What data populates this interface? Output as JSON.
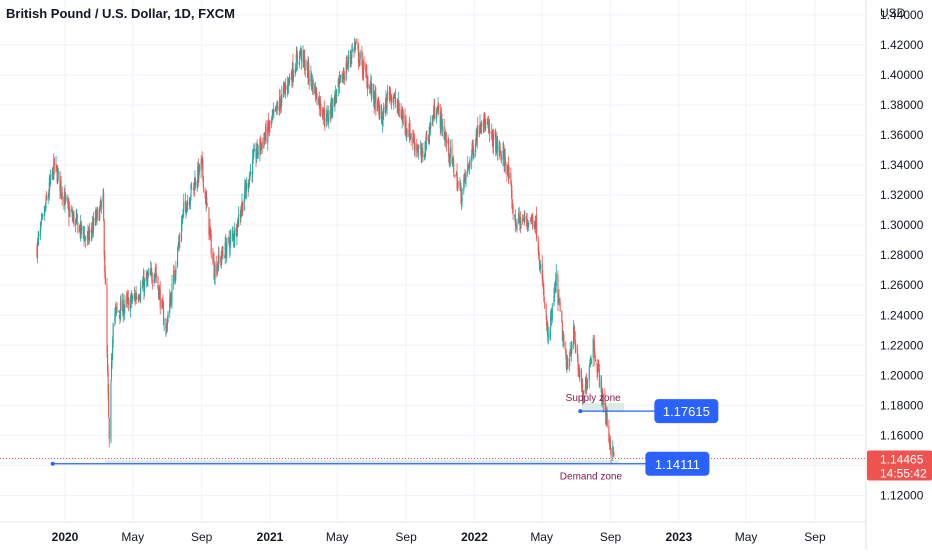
{
  "chart_data": {
    "type": "candlestick",
    "title": "British Pound / U.S. Dollar, 1D, FXCM",
    "currency_label": "USD",
    "ylim": [
      1.11,
      1.45
    ],
    "yticks": [
      "1.44000",
      "1.42000",
      "1.40000",
      "1.38000",
      "1.36000",
      "1.34000",
      "1.32000",
      "1.30000",
      "1.28000",
      "1.26000",
      "1.24000",
      "1.22000",
      "1.20000",
      "1.18000",
      "1.16000",
      "1.14000",
      "1.12000"
    ],
    "xticks": [
      {
        "label": "2020",
        "date": "2020-01-01",
        "bold": true
      },
      {
        "label": "May",
        "date": "2020-05-01",
        "bold": false
      },
      {
        "label": "Sep",
        "date": "2020-09-01",
        "bold": false
      },
      {
        "label": "2021",
        "date": "2021-01-01",
        "bold": true
      },
      {
        "label": "May",
        "date": "2021-05-01",
        "bold": false
      },
      {
        "label": "Sep",
        "date": "2021-09-01",
        "bold": false
      },
      {
        "label": "2022",
        "date": "2022-01-01",
        "bold": true
      },
      {
        "label": "May",
        "date": "2022-05-01",
        "bold": false
      },
      {
        "label": "Sep",
        "date": "2022-09-01",
        "bold": false
      },
      {
        "label": "2023",
        "date": "2023-01-01",
        "bold": true
      },
      {
        "label": "May",
        "date": "2023-05-01",
        "bold": false
      },
      {
        "label": "Sep",
        "date": "2023-09-01",
        "bold": false
      }
    ],
    "price_path": [
      [
        "2019-11-12",
        1.285
      ],
      [
        "2019-12-13",
        1.34
      ],
      [
        "2020-01-06",
        1.31
      ],
      [
        "2020-02-10",
        1.29
      ],
      [
        "2020-03-09",
        1.315
      ],
      [
        "2020-03-20",
        1.155
      ],
      [
        "2020-03-27",
        1.24
      ],
      [
        "2020-04-30",
        1.25
      ],
      [
        "2020-06-10",
        1.27
      ],
      [
        "2020-06-29",
        1.23
      ],
      [
        "2020-07-31",
        1.31
      ],
      [
        "2020-09-01",
        1.34
      ],
      [
        "2020-09-23",
        1.27
      ],
      [
        "2020-10-30",
        1.295
      ],
      [
        "2020-12-04",
        1.345
      ],
      [
        "2020-12-31",
        1.365
      ],
      [
        "2021-02-24",
        1.415
      ],
      [
        "2021-04-12",
        1.37
      ],
      [
        "2021-06-01",
        1.42
      ],
      [
        "2021-07-20",
        1.37
      ],
      [
        "2021-08-02",
        1.39
      ],
      [
        "2021-09-29",
        1.345
      ],
      [
        "2021-10-25",
        1.38
      ],
      [
        "2021-12-08",
        1.32
      ],
      [
        "2022-01-13",
        1.372
      ],
      [
        "2022-02-28",
        1.34
      ],
      [
        "2022-03-14",
        1.302
      ],
      [
        "2022-04-20",
        1.304
      ],
      [
        "2022-05-13",
        1.222
      ],
      [
        "2022-05-27",
        1.263
      ],
      [
        "2022-06-14",
        1.205
      ],
      [
        "2022-06-27",
        1.228
      ],
      [
        "2022-07-14",
        1.183
      ],
      [
        "2022-08-01",
        1.222
      ],
      [
        "2022-08-09",
        1.204
      ],
      [
        "2022-08-23",
        1.175
      ],
      [
        "2022-09-02",
        1.151
      ],
      [
        "2022-09-07",
        1.1446
      ]
    ],
    "price_range": {
      "low": 1.1412,
      "high": 1.4248
    },
    "current_price": {
      "label": "1.14465",
      "value": 1.14465,
      "countdown": "14:55:42",
      "color": "#ef5350"
    },
    "colors": {
      "up": "#26a69a",
      "down": "#ef5350",
      "line": "#2962ff",
      "zone_fill": "#d1e7dd",
      "annotation_text": "#8b1a4a"
    },
    "horizontal_lines": [
      {
        "name": "supply-level",
        "value": 1.17615,
        "label": "1.17615",
        "from": "2022-07-09",
        "to": "2022-11-20"
      },
      {
        "name": "demand-level",
        "value": 1.14111,
        "label": "1.14111",
        "from": "2019-12-10",
        "to": "2022-11-04"
      }
    ],
    "zones": [
      {
        "name": "supply-zone",
        "label": "Supply zone",
        "top": 1.1815,
        "bottom": 1.1765,
        "from": "2022-07-12",
        "to": "2022-09-25"
      },
      {
        "name": "demand-zone",
        "label": "Demand zone",
        "top": 1.1435,
        "bottom": 1.1412,
        "from": "2020-03-13",
        "to": "2022-09-16"
      }
    ],
    "grid": true
  }
}
